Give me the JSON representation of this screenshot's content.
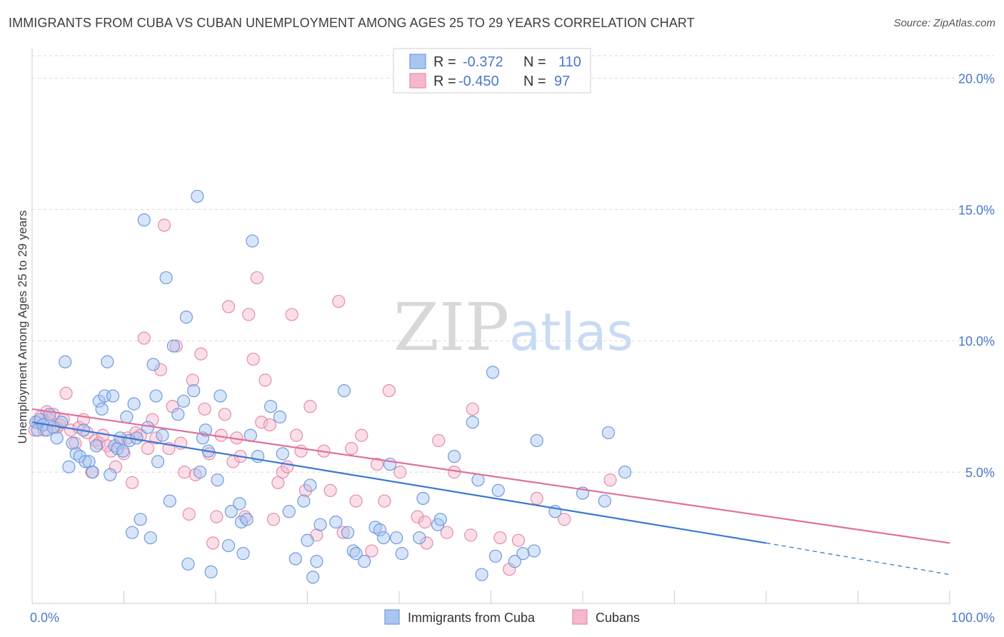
{
  "title": "IMMIGRANTS FROM CUBA VS CUBAN UNEMPLOYMENT AMONG AGES 25 TO 29 YEARS CORRELATION CHART",
  "source": "Source: ZipAtlas.com",
  "watermark": {
    "zip": "ZIP",
    "atlas": "atlas"
  },
  "colors": {
    "blue_fill": "#a9c6f0",
    "blue_stroke": "#6f9ae0",
    "blue_line": "#3a78d4",
    "pink_fill": "#f5b8cc",
    "pink_stroke": "#e88aaa",
    "pink_line": "#e0709a",
    "accent_text": "#4a79c8"
  },
  "legend": {
    "rows": [
      {
        "r_label": "R =",
        "r_value": "-0.372",
        "n_label": "N =",
        "n_value": "110"
      },
      {
        "r_label": "R =",
        "r_value": "-0.450",
        "n_label": "N =",
        "n_value": "97"
      }
    ]
  },
  "chart_data": {
    "type": "scatter",
    "title": "IMMIGRANTS FROM CUBA VS CUBAN UNEMPLOYMENT AMONG AGES 25 TO 29 YEARS CORRELATION CHART",
    "xlabel": "",
    "ylabel": "Unemployment Among Ages 25 to 29 years",
    "xlim": [
      0,
      100
    ],
    "ylim": [
      0,
      20.8
    ],
    "x_tick_labels": [
      "0.0%",
      "100.0%"
    ],
    "y_ticks": [
      5,
      10,
      15,
      20
    ],
    "y_tick_labels": [
      "5.0%",
      "10.0%",
      "15.0%",
      "20.0%"
    ],
    "grid": true,
    "legend_position": "top-center",
    "series": [
      {
        "name": "Immigrants from Cuba",
        "color": "#a9c6f0",
        "R": -0.372,
        "N": 110,
        "trend": {
          "x": [
            0,
            80
          ],
          "y": [
            6.9,
            2.3
          ]
        },
        "trend_extension": {
          "x": [
            80,
            100
          ],
          "y": [
            2.3,
            1.1
          ]
        },
        "points": [
          [
            0.4,
            6.9
          ],
          [
            0.6,
            6.6
          ],
          [
            0.9,
            7.0
          ],
          [
            1.2,
            6.8
          ],
          [
            1.6,
            6.6
          ],
          [
            1.9,
            7.2
          ],
          [
            2.3,
            6.7
          ],
          [
            2.7,
            6.3
          ],
          [
            3.2,
            6.9
          ],
          [
            3.6,
            9.2
          ],
          [
            4.0,
            5.2
          ],
          [
            4.4,
            6.1
          ],
          [
            4.8,
            5.7
          ],
          [
            5.2,
            5.6
          ],
          [
            5.6,
            6.6
          ],
          [
            5.8,
            5.4
          ],
          [
            6.2,
            5.4
          ],
          [
            6.6,
            5.0
          ],
          [
            7.0,
            6.0
          ],
          [
            7.3,
            7.7
          ],
          [
            7.6,
            7.4
          ],
          [
            7.9,
            7.9
          ],
          [
            8.2,
            9.2
          ],
          [
            8.5,
            4.9
          ],
          [
            8.8,
            7.9
          ],
          [
            9.0,
            6.0
          ],
          [
            9.3,
            5.9
          ],
          [
            9.6,
            6.3
          ],
          [
            9.9,
            5.8
          ],
          [
            10.3,
            7.1
          ],
          [
            10.6,
            6.2
          ],
          [
            10.9,
            2.7
          ],
          [
            11.1,
            7.6
          ],
          [
            11.4,
            6.3
          ],
          [
            11.8,
            3.2
          ],
          [
            12.2,
            14.6
          ],
          [
            12.6,
            6.7
          ],
          [
            12.9,
            2.5
          ],
          [
            13.2,
            9.1
          ],
          [
            13.5,
            7.9
          ],
          [
            13.7,
            5.4
          ],
          [
            14.2,
            6.4
          ],
          [
            14.6,
            12.4
          ],
          [
            15.0,
            3.9
          ],
          [
            15.4,
            9.8
          ],
          [
            15.9,
            7.2
          ],
          [
            16.5,
            7.7
          ],
          [
            16.8,
            10.9
          ],
          [
            17.0,
            1.5
          ],
          [
            17.6,
            8.1
          ],
          [
            18.0,
            15.5
          ],
          [
            18.3,
            5.0
          ],
          [
            18.6,
            6.3
          ],
          [
            18.9,
            6.6
          ],
          [
            19.2,
            5.8
          ],
          [
            19.5,
            1.2
          ],
          [
            20.2,
            4.7
          ],
          [
            20.5,
            7.9
          ],
          [
            21.4,
            2.2
          ],
          [
            21.7,
            3.5
          ],
          [
            22.6,
            3.8
          ],
          [
            22.8,
            3.1
          ],
          [
            23.0,
            1.9
          ],
          [
            23.4,
            3.2
          ],
          [
            23.8,
            6.4
          ],
          [
            24.0,
            13.8
          ],
          [
            24.6,
            5.6
          ],
          [
            26.0,
            7.5
          ],
          [
            27.0,
            7.1
          ],
          [
            27.3,
            5.7
          ],
          [
            28.0,
            3.5
          ],
          [
            28.7,
            1.7
          ],
          [
            29.6,
            3.9
          ],
          [
            30.0,
            2.4
          ],
          [
            30.3,
            4.5
          ],
          [
            30.6,
            1.0
          ],
          [
            31.0,
            1.6
          ],
          [
            31.4,
            3.0
          ],
          [
            33.1,
            3.1
          ],
          [
            34.0,
            8.1
          ],
          [
            34.4,
            2.7
          ],
          [
            35.0,
            2.0
          ],
          [
            35.3,
            1.9
          ],
          [
            36.2,
            1.6
          ],
          [
            37.4,
            2.9
          ],
          [
            37.9,
            2.8
          ],
          [
            38.3,
            2.5
          ],
          [
            39.0,
            5.3
          ],
          [
            39.7,
            2.5
          ],
          [
            40.3,
            1.9
          ],
          [
            42.2,
            2.5
          ],
          [
            42.6,
            4.0
          ],
          [
            44.2,
            3.0
          ],
          [
            44.5,
            3.2
          ],
          [
            46.0,
            5.6
          ],
          [
            48.0,
            6.9
          ],
          [
            48.6,
            4.7
          ],
          [
            49.0,
            1.1
          ],
          [
            50.2,
            8.8
          ],
          [
            50.5,
            1.8
          ],
          [
            50.8,
            4.3
          ],
          [
            52.6,
            1.6
          ],
          [
            53.5,
            1.9
          ],
          [
            54.7,
            2.0
          ],
          [
            55.0,
            6.2
          ],
          [
            57.0,
            3.5
          ],
          [
            60.0,
            4.2
          ],
          [
            62.4,
            3.9
          ],
          [
            62.8,
            6.5
          ],
          [
            64.6,
            5.0
          ]
        ]
      },
      {
        "name": "Cubans",
        "color": "#f5b8cc",
        "R": -0.45,
        "N": 97,
        "trend": {
          "x": [
            0,
            100
          ],
          "y": [
            7.4,
            2.3
          ]
        },
        "points": [
          [
            0.3,
            6.6
          ],
          [
            0.6,
            6.9
          ],
          [
            0.9,
            7.1
          ],
          [
            1.3,
            6.6
          ],
          [
            1.6,
            7.3
          ],
          [
            1.9,
            7.0
          ],
          [
            2.3,
            7.2
          ],
          [
            2.7,
            6.7
          ],
          [
            3.0,
            6.8
          ],
          [
            3.4,
            7.0
          ],
          [
            3.7,
            8.0
          ],
          [
            4.2,
            6.6
          ],
          [
            4.7,
            6.1
          ],
          [
            5.1,
            6.7
          ],
          [
            5.6,
            7.0
          ],
          [
            6.0,
            6.5
          ],
          [
            6.5,
            5.0
          ],
          [
            6.9,
            6.2
          ],
          [
            7.3,
            6.1
          ],
          [
            7.7,
            6.4
          ],
          [
            8.2,
            6.0
          ],
          [
            8.6,
            5.8
          ],
          [
            9.1,
            5.2
          ],
          [
            9.6,
            6.1
          ],
          [
            10.0,
            5.7
          ],
          [
            10.4,
            6.3
          ],
          [
            10.9,
            4.6
          ],
          [
            11.3,
            6.5
          ],
          [
            11.8,
            6.4
          ],
          [
            12.2,
            10.1
          ],
          [
            12.6,
            5.9
          ],
          [
            13.1,
            7.0
          ],
          [
            13.5,
            6.3
          ],
          [
            14.0,
            8.9
          ],
          [
            14.4,
            14.4
          ],
          [
            14.9,
            5.9
          ],
          [
            15.3,
            7.5
          ],
          [
            15.7,
            9.8
          ],
          [
            16.2,
            6.1
          ],
          [
            16.6,
            5.0
          ],
          [
            17.1,
            3.4
          ],
          [
            17.5,
            8.5
          ],
          [
            17.8,
            4.9
          ],
          [
            18.4,
            9.5
          ],
          [
            18.8,
            7.4
          ],
          [
            19.3,
            5.7
          ],
          [
            19.7,
            2.3
          ],
          [
            20.1,
            3.3
          ],
          [
            20.6,
            6.4
          ],
          [
            21.0,
            7.2
          ],
          [
            21.4,
            11.3
          ],
          [
            21.9,
            5.4
          ],
          [
            22.3,
            6.3
          ],
          [
            22.7,
            5.6
          ],
          [
            23.2,
            3.3
          ],
          [
            23.6,
            11.0
          ],
          [
            24.1,
            9.3
          ],
          [
            24.5,
            12.4
          ],
          [
            25.0,
            6.9
          ],
          [
            25.4,
            8.5
          ],
          [
            25.9,
            6.8
          ],
          [
            26.3,
            3.2
          ],
          [
            26.8,
            4.6
          ],
          [
            27.3,
            5.0
          ],
          [
            27.8,
            5.2
          ],
          [
            28.3,
            11.0
          ],
          [
            28.8,
            6.4
          ],
          [
            29.3,
            5.8
          ],
          [
            29.8,
            4.3
          ],
          [
            30.3,
            7.5
          ],
          [
            31.0,
            2.6
          ],
          [
            31.8,
            5.8
          ],
          [
            32.5,
            4.3
          ],
          [
            33.4,
            11.5
          ],
          [
            33.9,
            2.7
          ],
          [
            34.8,
            5.9
          ],
          [
            35.3,
            3.9
          ],
          [
            35.9,
            6.4
          ],
          [
            37.0,
            2.0
          ],
          [
            37.6,
            5.3
          ],
          [
            38.4,
            3.9
          ],
          [
            38.9,
            8.1
          ],
          [
            40.1,
            5.0
          ],
          [
            42.0,
            3.3
          ],
          [
            42.8,
            3.1
          ],
          [
            43.0,
            2.3
          ],
          [
            44.3,
            6.2
          ],
          [
            45.2,
            2.7
          ],
          [
            46.0,
            5.0
          ],
          [
            47.8,
            2.6
          ],
          [
            48.0,
            7.4
          ],
          [
            51.0,
            2.5
          ],
          [
            52.0,
            1.3
          ],
          [
            53.0,
            2.4
          ],
          [
            55.0,
            4.0
          ],
          [
            58.0,
            3.2
          ],
          [
            63.0,
            4.7
          ]
        ]
      }
    ]
  },
  "bottom_legend": [
    {
      "label": "Immigrants from Cuba"
    },
    {
      "label": "Cubans"
    }
  ]
}
